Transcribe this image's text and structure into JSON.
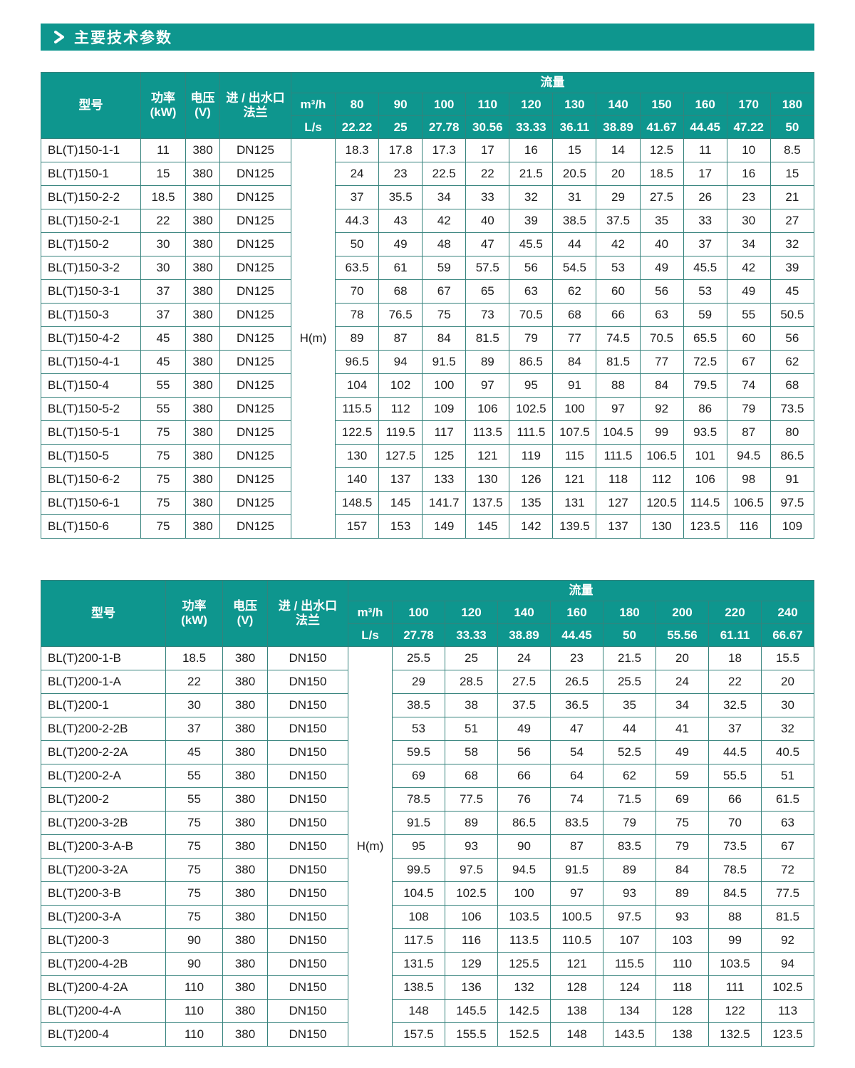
{
  "section": {
    "title": "主要技术参数"
  },
  "colors": {
    "accent": "#0e968e",
    "border": "#35827c",
    "header_text": "#ffffff",
    "body_text": "#1c1c1c"
  },
  "tables": [
    {
      "headers": {
        "model": "型号",
        "power": "功率\n(kW)",
        "voltage": "电压\n(V)",
        "flange": "进 / 出水口\n法兰",
        "flow": "流量",
        "unit_m3h": "m³/h",
        "unit_ls": "L/s",
        "head": "H(m)"
      },
      "flow_m3h": [
        "80",
        "90",
        "100",
        "110",
        "120",
        "130",
        "140",
        "150",
        "160",
        "170",
        "180"
      ],
      "flow_ls": [
        "22.22",
        "25",
        "27.78",
        "30.56",
        "33.33",
        "36.11",
        "38.89",
        "41.67",
        "44.45",
        "47.22",
        "50"
      ],
      "rows": [
        {
          "model": "BL(T)150-1-1",
          "power": "11",
          "voltage": "380",
          "flange": "DN125",
          "values": [
            "18.3",
            "17.8",
            "17.3",
            "17",
            "16",
            "15",
            "14",
            "12.5",
            "11",
            "10",
            "8.5"
          ]
        },
        {
          "model": "BL(T)150-1",
          "power": "15",
          "voltage": "380",
          "flange": "DN125",
          "values": [
            "24",
            "23",
            "22.5",
            "22",
            "21.5",
            "20.5",
            "20",
            "18.5",
            "17",
            "16",
            "15"
          ]
        },
        {
          "model": "BL(T)150-2-2",
          "power": "18.5",
          "voltage": "380",
          "flange": "DN125",
          "values": [
            "37",
            "35.5",
            "34",
            "33",
            "32",
            "31",
            "29",
            "27.5",
            "26",
            "23",
            "21"
          ]
        },
        {
          "model": "BL(T)150-2-1",
          "power": "22",
          "voltage": "380",
          "flange": "DN125",
          "values": [
            "44.3",
            "43",
            "42",
            "40",
            "39",
            "38.5",
            "37.5",
            "35",
            "33",
            "30",
            "27"
          ]
        },
        {
          "model": "BL(T)150-2",
          "power": "30",
          "voltage": "380",
          "flange": "DN125",
          "values": [
            "50",
            "49",
            "48",
            "47",
            "45.5",
            "44",
            "42",
            "40",
            "37",
            "34",
            "32"
          ]
        },
        {
          "model": "BL(T)150-3-2",
          "power": "30",
          "voltage": "380",
          "flange": "DN125",
          "values": [
            "63.5",
            "61",
            "59",
            "57.5",
            "56",
            "54.5",
            "53",
            "49",
            "45.5",
            "42",
            "39"
          ]
        },
        {
          "model": "BL(T)150-3-1",
          "power": "37",
          "voltage": "380",
          "flange": "DN125",
          "values": [
            "70",
            "68",
            "67",
            "65",
            "63",
            "62",
            "60",
            "56",
            "53",
            "49",
            "45"
          ]
        },
        {
          "model": "BL(T)150-3",
          "power": "37",
          "voltage": "380",
          "flange": "DN125",
          "values": [
            "78",
            "76.5",
            "75",
            "73",
            "70.5",
            "68",
            "66",
            "63",
            "59",
            "55",
            "50.5"
          ]
        },
        {
          "model": "BL(T)150-4-2",
          "power": "45",
          "voltage": "380",
          "flange": "DN125",
          "values": [
            "89",
            "87",
            "84",
            "81.5",
            "79",
            "77",
            "74.5",
            "70.5",
            "65.5",
            "60",
            "56"
          ]
        },
        {
          "model": "BL(T)150-4-1",
          "power": "45",
          "voltage": "380",
          "flange": "DN125",
          "values": [
            "96.5",
            "94",
            "91.5",
            "89",
            "86.5",
            "84",
            "81.5",
            "77",
            "72.5",
            "67",
            "62"
          ]
        },
        {
          "model": "BL(T)150-4",
          "power": "55",
          "voltage": "380",
          "flange": "DN125",
          "values": [
            "104",
            "102",
            "100",
            "97",
            "95",
            "91",
            "88",
            "84",
            "79.5",
            "74",
            "68"
          ]
        },
        {
          "model": "BL(T)150-5-2",
          "power": "55",
          "voltage": "380",
          "flange": "DN125",
          "values": [
            "115.5",
            "112",
            "109",
            "106",
            "102.5",
            "100",
            "97",
            "92",
            "86",
            "79",
            "73.5"
          ]
        },
        {
          "model": "BL(T)150-5-1",
          "power": "75",
          "voltage": "380",
          "flange": "DN125",
          "values": [
            "122.5",
            "119.5",
            "117",
            "113.5",
            "111.5",
            "107.5",
            "104.5",
            "99",
            "93.5",
            "87",
            "80"
          ]
        },
        {
          "model": "BL(T)150-5",
          "power": "75",
          "voltage": "380",
          "flange": "DN125",
          "values": [
            "130",
            "127.5",
            "125",
            "121",
            "119",
            "115",
            "111.5",
            "106.5",
            "101",
            "94.5",
            "86.5"
          ]
        },
        {
          "model": "BL(T)150-6-2",
          "power": "75",
          "voltage": "380",
          "flange": "DN125",
          "values": [
            "140",
            "137",
            "133",
            "130",
            "126",
            "121",
            "118",
            "112",
            "106",
            "98",
            "91"
          ]
        },
        {
          "model": "BL(T)150-6-1",
          "power": "75",
          "voltage": "380",
          "flange": "DN125",
          "values": [
            "148.5",
            "145",
            "141.7",
            "137.5",
            "135",
            "131",
            "127",
            "120.5",
            "114.5",
            "106.5",
            "97.5"
          ]
        },
        {
          "model": "BL(T)150-6",
          "power": "75",
          "voltage": "380",
          "flange": "DN125",
          "values": [
            "157",
            "153",
            "149",
            "145",
            "142",
            "139.5",
            "137",
            "130",
            "123.5",
            "116",
            "109"
          ]
        }
      ]
    },
    {
      "headers": {
        "model": "型号",
        "power": "功率\n(kW)",
        "voltage": "电压\n(V)",
        "flange": "进 / 出水口\n法兰",
        "flow": "流量",
        "unit_m3h": "m³/h",
        "unit_ls": "L/s",
        "head": "H(m)"
      },
      "flow_m3h": [
        "100",
        "120",
        "140",
        "160",
        "180",
        "200",
        "220",
        "240"
      ],
      "flow_ls": [
        "27.78",
        "33.33",
        "38.89",
        "44.45",
        "50",
        "55.56",
        "61.11",
        "66.67"
      ],
      "rows": [
        {
          "model": "BL(T)200-1-B",
          "power": "18.5",
          "voltage": "380",
          "flange": "DN150",
          "values": [
            "25.5",
            "25",
            "24",
            "23",
            "21.5",
            "20",
            "18",
            "15.5"
          ]
        },
        {
          "model": "BL(T)200-1-A",
          "power": "22",
          "voltage": "380",
          "flange": "DN150",
          "values": [
            "29",
            "28.5",
            "27.5",
            "26.5",
            "25.5",
            "24",
            "22",
            "20"
          ]
        },
        {
          "model": "BL(T)200-1",
          "power": "30",
          "voltage": "380",
          "flange": "DN150",
          "values": [
            "38.5",
            "38",
            "37.5",
            "36.5",
            "35",
            "34",
            "32.5",
            "30"
          ]
        },
        {
          "model": "BL(T)200-2-2B",
          "power": "37",
          "voltage": "380",
          "flange": "DN150",
          "values": [
            "53",
            "51",
            "49",
            "47",
            "44",
            "41",
            "37",
            "32"
          ]
        },
        {
          "model": "BL(T)200-2-2A",
          "power": "45",
          "voltage": "380",
          "flange": "DN150",
          "values": [
            "59.5",
            "58",
            "56",
            "54",
            "52.5",
            "49",
            "44.5",
            "40.5"
          ]
        },
        {
          "model": "BL(T)200-2-A",
          "power": "55",
          "voltage": "380",
          "flange": "DN150",
          "values": [
            "69",
            "68",
            "66",
            "64",
            "62",
            "59",
            "55.5",
            "51"
          ]
        },
        {
          "model": "BL(T)200-2",
          "power": "55",
          "voltage": "380",
          "flange": "DN150",
          "values": [
            "78.5",
            "77.5",
            "76",
            "74",
            "71.5",
            "69",
            "66",
            "61.5"
          ]
        },
        {
          "model": "BL(T)200-3-2B",
          "power": "75",
          "voltage": "380",
          "flange": "DN150",
          "values": [
            "91.5",
            "89",
            "86.5",
            "83.5",
            "79",
            "75",
            "70",
            "63"
          ]
        },
        {
          "model": "BL(T)200-3-A-B",
          "power": "75",
          "voltage": "380",
          "flange": "DN150",
          "values": [
            "95",
            "93",
            "90",
            "87",
            "83.5",
            "79",
            "73.5",
            "67"
          ]
        },
        {
          "model": "BL(T)200-3-2A",
          "power": "75",
          "voltage": "380",
          "flange": "DN150",
          "values": [
            "99.5",
            "97.5",
            "94.5",
            "91.5",
            "89",
            "84",
            "78.5",
            "72"
          ]
        },
        {
          "model": "BL(T)200-3-B",
          "power": "75",
          "voltage": "380",
          "flange": "DN150",
          "values": [
            "104.5",
            "102.5",
            "100",
            "97",
            "93",
            "89",
            "84.5",
            "77.5"
          ]
        },
        {
          "model": "BL(T)200-3-A",
          "power": "75",
          "voltage": "380",
          "flange": "DN150",
          "values": [
            "108",
            "106",
            "103.5",
            "100.5",
            "97.5",
            "93",
            "88",
            "81.5"
          ]
        },
        {
          "model": "BL(T)200-3",
          "power": "90",
          "voltage": "380",
          "flange": "DN150",
          "values": [
            "117.5",
            "116",
            "113.5",
            "110.5",
            "107",
            "103",
            "99",
            "92"
          ]
        },
        {
          "model": "BL(T)200-4-2B",
          "power": "90",
          "voltage": "380",
          "flange": "DN150",
          "values": [
            "131.5",
            "129",
            "125.5",
            "121",
            "115.5",
            "110",
            "103.5",
            "94"
          ]
        },
        {
          "model": "BL(T)200-4-2A",
          "power": "110",
          "voltage": "380",
          "flange": "DN150",
          "values": [
            "138.5",
            "136",
            "132",
            "128",
            "124",
            "118",
            "111",
            "102.5"
          ]
        },
        {
          "model": "BL(T)200-4-A",
          "power": "110",
          "voltage": "380",
          "flange": "DN150",
          "values": [
            "148",
            "145.5",
            "142.5",
            "138",
            "134",
            "128",
            "122",
            "113"
          ]
        },
        {
          "model": "BL(T)200-4",
          "power": "110",
          "voltage": "380",
          "flange": "DN150",
          "values": [
            "157.5",
            "155.5",
            "152.5",
            "148",
            "143.5",
            "138",
            "132.5",
            "123.5"
          ]
        }
      ]
    }
  ]
}
